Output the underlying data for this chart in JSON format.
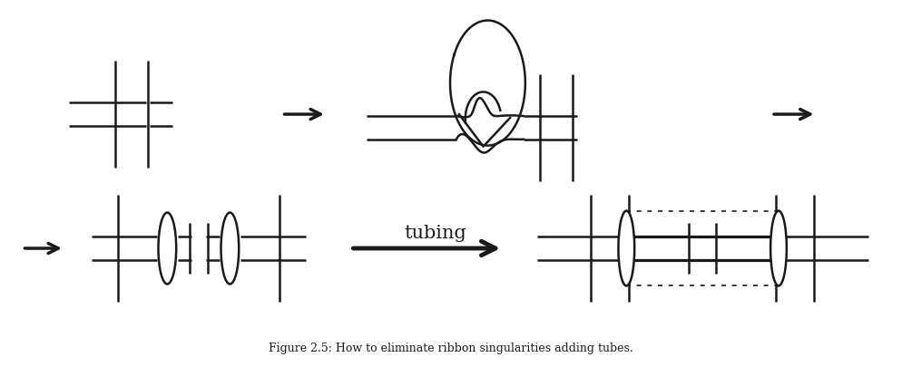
{
  "bg_color": "#ffffff",
  "line_color": "#1a1a1a",
  "lw": 1.8,
  "fig_width": 9.94,
  "fig_height": 4.06,
  "title": "Figure 2.5: How to eliminate ribbon singularities adding tubes.",
  "title_fontsize": 9
}
